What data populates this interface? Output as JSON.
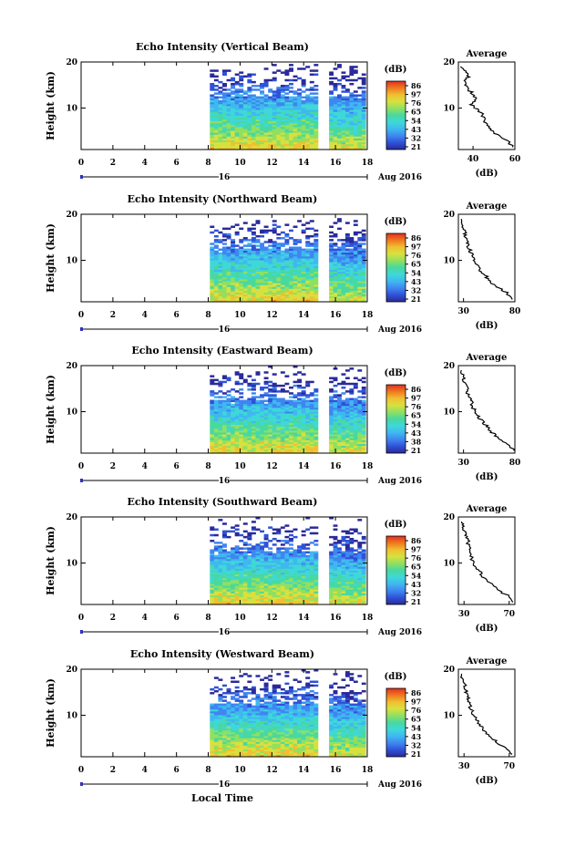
{
  "panels": [
    {
      "title": "Echo Intensity (Vertical Beam)",
      "ylabel": "Height (km)",
      "yticks": [
        10,
        20
      ],
      "xticks": [
        0,
        2,
        4,
        6,
        8,
        10,
        12,
        14,
        16,
        18
      ],
      "day_label": "16",
      "date_label": "Aug 2016",
      "cbar_unit": "(dB)",
      "cbar_labels": [
        "86",
        "97",
        "76",
        "65",
        "54",
        "43",
        "32",
        "21"
      ],
      "avg_title": "Average",
      "avg_xlabel": "(dB)",
      "avg_xticks": [
        40,
        60
      ],
      "avg_yticks": [
        10,
        20
      ]
    },
    {
      "title": "Echo Intensity (Northward Beam)",
      "ylabel": "Height (km)",
      "yticks": [
        10,
        20
      ],
      "xticks": [
        0,
        2,
        4,
        6,
        8,
        10,
        12,
        14,
        16,
        18
      ],
      "day_label": "16",
      "date_label": "Aug 2016",
      "cbar_unit": "(dB)",
      "cbar_labels": [
        "86",
        "97",
        "76",
        "65",
        "54",
        "43",
        "32",
        "21"
      ],
      "avg_title": "Average",
      "avg_xlabel": "(dB)",
      "avg_xticks": [
        30,
        80
      ],
      "avg_yticks": [
        10,
        20
      ]
    },
    {
      "title": "Echo Intensity (Eastward Beam)",
      "ylabel": "Height (km)",
      "yticks": [
        10,
        20
      ],
      "xticks": [
        0,
        2,
        4,
        6,
        8,
        10,
        12,
        14,
        16,
        18
      ],
      "day_label": "16",
      "date_label": "Aug 2016",
      "cbar_unit": "(dB)",
      "cbar_labels": [
        "86",
        "97",
        "76",
        "65",
        "54",
        "43",
        "38",
        "21"
      ],
      "avg_title": "Average",
      "avg_xlabel": "(dB)",
      "avg_xticks": [
        30,
        80
      ],
      "avg_yticks": [
        10,
        20
      ]
    },
    {
      "title": "Echo Intensity (Southward Beam)",
      "ylabel": "Height (km)",
      "yticks": [
        10,
        20
      ],
      "xticks": [
        0,
        2,
        4,
        6,
        8,
        10,
        12,
        14,
        16,
        18
      ],
      "day_label": "16",
      "date_label": "Aug 2016",
      "cbar_unit": "(dB)",
      "cbar_labels": [
        "86",
        "97",
        "76",
        "65",
        "54",
        "43",
        "32",
        "21"
      ],
      "avg_title": "Average",
      "avg_xlabel": "(dB)",
      "avg_xticks": [
        30,
        70
      ],
      "avg_yticks": [
        10,
        20
      ]
    },
    {
      "title": "Echo Intensity (Westward Beam)",
      "ylabel": "Height (km)",
      "yticks": [
        10,
        20
      ],
      "xticks": [
        0,
        2,
        4,
        6,
        8,
        10,
        12,
        14,
        16,
        18
      ],
      "day_label": "16",
      "date_label": "Aug 2016",
      "cbar_unit": "(dB)",
      "cbar_labels": [
        "86",
        "97",
        "76",
        "65",
        "54",
        "43",
        "32",
        "21"
      ],
      "avg_title": "Average",
      "avg_xlabel": "(dB)",
      "avg_xticks": [
        30,
        70
      ],
      "avg_yticks": [
        10,
        20
      ]
    }
  ],
  "xlabel": "Local Time",
  "colors": {
    "colormap": [
      "#2a2a9a",
      "#2f52d6",
      "#3f86f0",
      "#3fb8f0",
      "#3fd8d8",
      "#48d8a0",
      "#90e060",
      "#d8e040",
      "#f0c030",
      "#f07820",
      "#e03020"
    ]
  },
  "chart_data": [
    {
      "type": "heatmap",
      "title": "Echo Intensity (Vertical Beam)",
      "xlabel": "Local Time",
      "ylabel": "Height (km)",
      "xlim": [
        0,
        18
      ],
      "ylim": [
        1,
        20
      ],
      "data_time_ranges": [
        [
          8.1,
          14.9
        ],
        [
          15.6,
          17.9
        ]
      ],
      "colorbar_unit": "dB",
      "average_profile": {
        "xlim": [
          33,
          60
        ],
        "ylim": [
          1,
          20
        ],
        "height": [
          1.5,
          3,
          4,
          5,
          6,
          7,
          8,
          9,
          10,
          11,
          12,
          13,
          14,
          15,
          16,
          17,
          18,
          19
        ],
        "dB": [
          59,
          56,
          52,
          49,
          47,
          46,
          45,
          44,
          41,
          39,
          42,
          40,
          38,
          37,
          36,
          38,
          36,
          34
        ]
      }
    },
    {
      "type": "heatmap",
      "title": "Echo Intensity (Northward Beam)",
      "xlabel": "Local Time",
      "ylabel": "Height (km)",
      "xlim": [
        0,
        18
      ],
      "ylim": [
        1,
        20
      ],
      "data_time_ranges": [
        [
          8.1,
          14.9
        ],
        [
          15.6,
          17.9
        ]
      ],
      "colorbar_unit": "dB",
      "average_profile": {
        "xlim": [
          25,
          80
        ],
        "ylim": [
          1,
          20
        ],
        "height": [
          1.5,
          3,
          4,
          5,
          6,
          7,
          8,
          9,
          10,
          11,
          12,
          13,
          14,
          15,
          16,
          17,
          18,
          19
        ],
        "dB": [
          79,
          72,
          64,
          58,
          54,
          50,
          46,
          43,
          40,
          38,
          37,
          35,
          33,
          32,
          31,
          30,
          29,
          28
        ]
      }
    },
    {
      "type": "heatmap",
      "title": "Echo Intensity (Eastward Beam)",
      "xlabel": "Local Time",
      "ylabel": "Height (km)",
      "xlim": [
        0,
        18
      ],
      "ylim": [
        1,
        20
      ],
      "data_time_ranges": [
        [
          8.1,
          14.9
        ],
        [
          15.6,
          17.9
        ]
      ],
      "colorbar_unit": "dB",
      "average_profile": {
        "xlim": [
          25,
          80
        ],
        "ylim": [
          1,
          20
        ],
        "height": [
          1.5,
          3,
          4,
          5,
          6,
          7,
          8,
          9,
          10,
          11,
          12,
          13,
          14,
          15,
          16,
          17,
          18,
          19
        ],
        "dB": [
          79,
          74,
          66,
          60,
          56,
          52,
          48,
          44,
          41,
          39,
          38,
          36,
          34,
          33,
          32,
          30,
          29,
          28
        ]
      }
    },
    {
      "type": "heatmap",
      "title": "Echo Intensity (Southward Beam)",
      "xlabel": "Local Time",
      "ylabel": "Height (km)",
      "xlim": [
        0,
        18
      ],
      "ylim": [
        1,
        20
      ],
      "data_time_ranges": [
        [
          8.1,
          14.9
        ],
        [
          15.6,
          17.9
        ]
      ],
      "colorbar_unit": "dB",
      "average_profile": {
        "xlim": [
          25,
          75
        ],
        "ylim": [
          1,
          20
        ],
        "height": [
          1.5,
          3,
          4,
          5,
          6,
          7,
          8,
          9,
          10,
          11,
          12,
          13,
          14,
          15,
          16,
          17,
          18,
          19
        ],
        "dB": [
          74,
          68,
          61,
          56,
          51,
          47,
          44,
          41,
          39,
          37,
          36,
          35,
          34,
          33,
          31,
          30,
          29,
          28
        ]
      }
    },
    {
      "type": "heatmap",
      "title": "Echo Intensity (Westward Beam)",
      "xlabel": "Local Time",
      "ylabel": "Height (km)",
      "xlim": [
        0,
        18
      ],
      "ylim": [
        1,
        20
      ],
      "data_time_ranges": [
        [
          8.1,
          14.9
        ],
        [
          15.6,
          17.9
        ]
      ],
      "colorbar_unit": "dB",
      "average_profile": {
        "xlim": [
          25,
          75
        ],
        "ylim": [
          1,
          20
        ],
        "height": [
          1.5,
          3,
          4,
          5,
          6,
          7,
          8,
          9,
          10,
          11,
          12,
          13,
          14,
          15,
          16,
          17,
          18,
          19
        ],
        "dB": [
          74,
          67,
          60,
          55,
          50,
          47,
          44,
          41,
          39,
          37,
          35,
          34,
          33,
          32,
          31,
          30,
          29,
          28
        ]
      }
    }
  ]
}
